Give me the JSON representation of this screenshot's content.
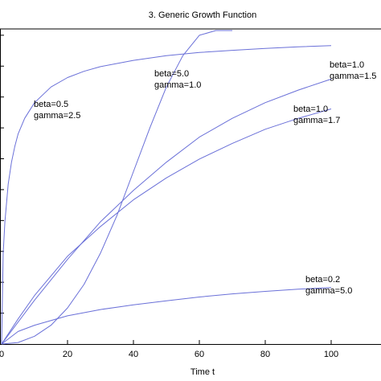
{
  "chart_data": {
    "type": "line",
    "title": "3.  Generic  Growth  Function",
    "xlabel": "Time  t",
    "ylabel": "",
    "xlim": [
      0,
      110
    ],
    "ylim": [
      0,
      1.05
    ],
    "x_ticks": [
      0,
      20,
      40,
      60,
      80,
      100
    ],
    "x_tick_labels": [
      "0",
      "20",
      "40",
      "60",
      "80",
      "100"
    ],
    "grid": false,
    "line_color": "#6a70d8",
    "series": [
      {
        "x": [
          0,
          0.5,
          1,
          2,
          3,
          4,
          5,
          7,
          10,
          15,
          20,
          25,
          30,
          40,
          50,
          60,
          70,
          80,
          90,
          100
        ],
        "values": [
          0,
          0.29,
          0.39,
          0.51,
          0.58,
          0.63,
          0.67,
          0.72,
          0.77,
          0.82,
          0.85,
          0.87,
          0.885,
          0.905,
          0.92,
          0.93,
          0.937,
          0.943,
          0.948,
          0.952
        ],
        "label_line1": "beta=0.5",
        "label_line2": "gamma=2.5"
      },
      {
        "x": [
          0,
          5,
          10,
          15,
          20,
          25,
          30,
          35,
          40,
          45,
          50,
          55,
          60,
          65,
          70
        ],
        "values": [
          0,
          0.005,
          0.025,
          0.06,
          0.115,
          0.19,
          0.29,
          0.41,
          0.55,
          0.69,
          0.82,
          0.92,
          0.985,
          1.0,
          1.0
        ],
        "label_line1": "beta=5.0",
        "label_line2": "gamma=1.0"
      },
      {
        "x": [
          0,
          5,
          10,
          20,
          30,
          40,
          50,
          60,
          70,
          80,
          90,
          100
        ],
        "values": [
          0,
          0.07,
          0.14,
          0.27,
          0.39,
          0.49,
          0.58,
          0.66,
          0.72,
          0.77,
          0.81,
          0.845
        ],
        "label_line1": "beta=1.0",
        "label_line2": "gamma=1.5"
      },
      {
        "x": [
          0,
          5,
          10,
          20,
          30,
          40,
          50,
          60,
          70,
          80,
          90,
          100
        ],
        "values": [
          0,
          0.08,
          0.155,
          0.28,
          0.375,
          0.46,
          0.53,
          0.59,
          0.64,
          0.685,
          0.72,
          0.75
        ],
        "label_line1": "beta=1.0",
        "label_line2": "gamma=1.7"
      },
      {
        "x": [
          0,
          5,
          10,
          20,
          30,
          40,
          50,
          60,
          70,
          80,
          90,
          100
        ],
        "values": [
          0,
          0.04,
          0.06,
          0.09,
          0.11,
          0.125,
          0.138,
          0.15,
          0.16,
          0.168,
          0.175,
          0.18
        ],
        "label_line1": "beta=0.2",
        "label_line2": "gamma=5.0"
      }
    ]
  }
}
